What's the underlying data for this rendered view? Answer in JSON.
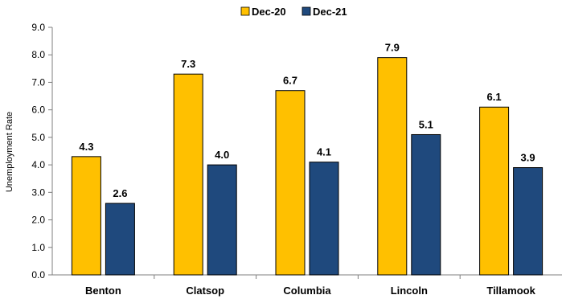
{
  "chart_data": {
    "type": "bar",
    "categories": [
      "Benton",
      "Clatsop",
      "Columbia",
      "Lincoln",
      "Tillamook"
    ],
    "series": [
      {
        "name": "Dec-20",
        "values": [
          4.3,
          7.3,
          6.7,
          7.9,
          6.1
        ],
        "color": "#FFC000"
      },
      {
        "name": "Dec-21",
        "values": [
          2.6,
          4.0,
          4.1,
          5.1,
          3.9
        ],
        "color": "#1F497D"
      }
    ],
    "yticks": [
      "0.0",
      "1.0",
      "2.0",
      "3.0",
      "4.0",
      "5.0",
      "6.0",
      "7.0",
      "8.0",
      "9.0"
    ],
    "ylim": [
      0,
      9
    ],
    "ylabel": "Unemployment Rate",
    "xlabel": "",
    "title": "",
    "grid": false,
    "legend_position": "top-center"
  }
}
